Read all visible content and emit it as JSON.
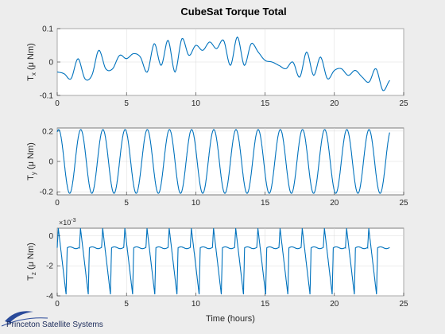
{
  "chart_data": {
    "title": "CubeSat Torque Total",
    "xlabel": "Time (hours)",
    "xlim": [
      0,
      25
    ],
    "xticks": [
      "0",
      "5",
      "10",
      "15",
      "20",
      "25"
    ],
    "grid": true,
    "series_color": "#0072bd",
    "subplots": [
      {
        "type": "line",
        "ylabel": "T",
        "ylabel_sub": "x",
        "ylabel_unit": " (μ Nm)",
        "ylim": [
          -0.1,
          0.1
        ],
        "yticks": [
          "-0.1",
          "0",
          "0.1"
        ],
        "x": [
          0,
          0.5,
          1,
          1.5,
          2,
          2.5,
          3,
          3.5,
          4,
          4.5,
          5,
          5.5,
          6,
          6.5,
          7,
          7.5,
          8,
          8.5,
          9,
          9.5,
          10,
          10.5,
          11,
          11.5,
          12,
          12.5,
          13,
          13.5,
          14,
          14.5,
          15,
          15.5,
          16,
          16.5,
          17,
          17.5,
          18,
          18.5,
          19,
          19.5,
          20,
          20.5,
          21,
          21.5,
          22,
          22.5,
          23,
          23.5,
          24
        ],
        "y": [
          -0.03,
          -0.035,
          -0.05,
          0.01,
          -0.05,
          -0.04,
          0.035,
          -0.02,
          -0.02,
          0.02,
          0.01,
          0.025,
          0.015,
          -0.03,
          0.055,
          -0.01,
          0.065,
          -0.03,
          0.07,
          0.02,
          0.05,
          0.035,
          0.06,
          0.04,
          0.065,
          -0.01,
          0.075,
          -0.01,
          0.055,
          0.03,
          0.005,
          0.0,
          -0.01,
          -0.02,
          0.0,
          -0.045,
          0.03,
          -0.04,
          0.015,
          -0.05,
          -0.025,
          -0.02,
          -0.04,
          -0.025,
          -0.045,
          -0.06,
          -0.02,
          -0.085,
          -0.055
        ]
      },
      {
        "type": "line",
        "ylabel": "T",
        "ylabel_sub": "y",
        "ylabel_unit": " (μ Nm)",
        "ylim": [
          -0.22,
          0.22
        ],
        "yticks": [
          "-0.2",
          "0",
          "0.2"
        ],
        "function": {
          "kind": "cosine",
          "amplitude": 0.21,
          "period_hours": 1.6,
          "phase_hours": 0.1,
          "t_max": 24
        }
      },
      {
        "type": "line",
        "ylabel": "T",
        "ylabel_sub": "z",
        "ylabel_unit": " (μ Nm)",
        "exponent_label": "×10",
        "exponent": "-3",
        "ylim": [
          -4,
          0.5
        ],
        "yticks": [
          "-4",
          "-2",
          "0"
        ],
        "function": {
          "kind": "sawtooth",
          "base": -0.8,
          "peak": 0.5,
          "trough": -3.9,
          "period_hours": 1.6,
          "t_max": 24
        }
      }
    ]
  },
  "branding": {
    "logo_text": "Princeton Satellite Systems",
    "logo_color": "#2a4a9a"
  }
}
